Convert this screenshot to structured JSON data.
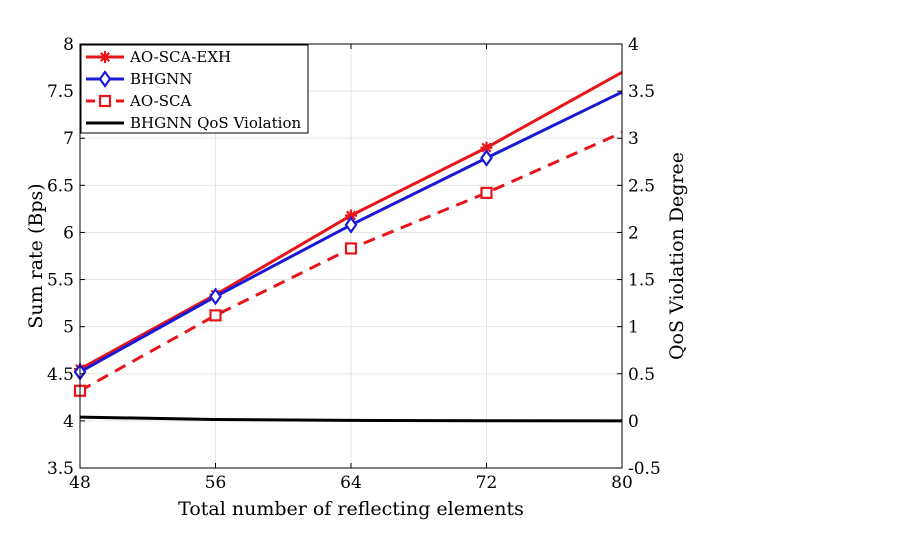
{
  "chart_data": {
    "type": "line",
    "xlabel": "Total number of reflecting elements",
    "ylabel": "Sum rate (Bps)",
    "ylabel_right": "QoS Violation Degree",
    "x": [
      48,
      56,
      64,
      72,
      80
    ],
    "xlim": [
      48,
      80
    ],
    "ylim": [
      3.5,
      8
    ],
    "ylim_right": [
      -0.5,
      4
    ],
    "xticks": [
      "48",
      "56",
      "64",
      "72",
      "80"
    ],
    "yticks": [
      "3.5",
      "4",
      "4.5",
      "5",
      "5.5",
      "6",
      "6.5",
      "7",
      "7.5",
      "8"
    ],
    "yticks_right": [
      "-0.5",
      "0",
      "0.5",
      "1",
      "1.5",
      "2",
      "2.5",
      "3",
      "3.5",
      "4"
    ],
    "grid": true,
    "legend_position": "top-left",
    "series": [
      {
        "name": "AO-SCA-EXH",
        "axis": "left",
        "color": "#e8141a",
        "marker": "asterisk",
        "dash": "solid",
        "x": [
          48,
          56,
          64,
          72,
          80
        ],
        "values": [
          4.55,
          5.34,
          6.18,
          6.9,
          7.7
        ],
        "marker_x": [
          48,
          56,
          64,
          72
        ]
      },
      {
        "name": "BHGNN",
        "axis": "left",
        "color": "#1a1ad6",
        "marker": "diamond",
        "dash": "solid",
        "x": [
          48,
          56,
          64,
          72,
          80
        ],
        "values": [
          4.52,
          5.32,
          6.08,
          6.79,
          7.49
        ],
        "marker_x": [
          48,
          56,
          64,
          72
        ]
      },
      {
        "name": "AO-SCA",
        "axis": "left",
        "color": "#e8141a",
        "marker": "square",
        "dash": "dashed",
        "x": [
          48,
          56,
          64,
          72,
          80
        ],
        "values": [
          4.32,
          5.12,
          5.83,
          6.42,
          7.06
        ],
        "marker_x": [
          48,
          56,
          64,
          72
        ]
      },
      {
        "name": "BHGNN QoS Violation",
        "axis": "right",
        "color": "#000000",
        "marker": "none",
        "dash": "solid",
        "x": [
          48,
          56,
          64,
          72,
          80
        ],
        "values": [
          0.04,
          0.015,
          0.005,
          0.002,
          0.0
        ],
        "marker_x": []
      }
    ]
  }
}
